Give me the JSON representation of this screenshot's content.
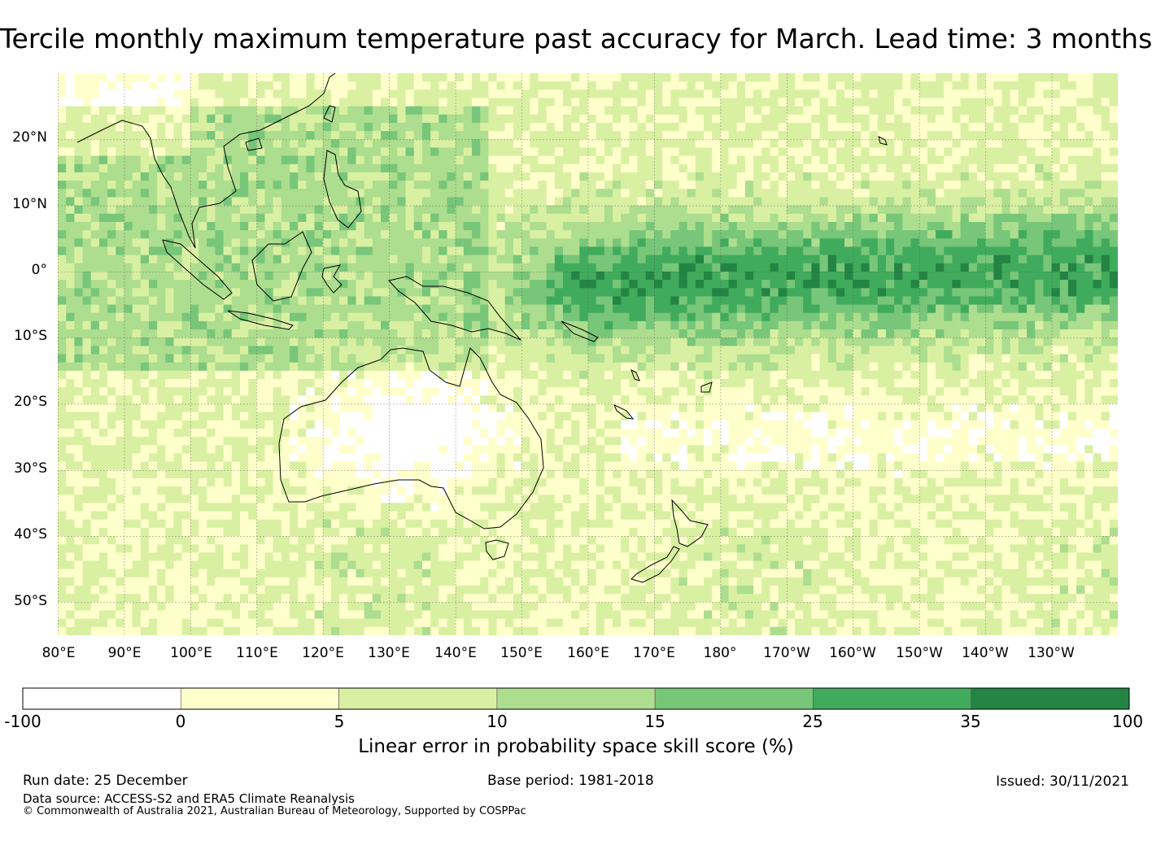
{
  "title": "Tercile monthly maximum temperature past accuracy for March. Lead time: 3 months",
  "map": {
    "lat_labels": [
      "20°N",
      "10°N",
      "0°",
      "10°S",
      "20°S",
      "30°S",
      "40°S",
      "50°S"
    ],
    "lon_labels": [
      "80°E",
      "90°E",
      "100°E",
      "110°E",
      "120°E",
      "130°E",
      "140°E",
      "150°E",
      "160°E",
      "170°E",
      "180°",
      "170°W",
      "160°W",
      "150°W",
      "140°W",
      "130°W"
    ],
    "lat_range": [
      -55,
      30
    ],
    "lon_range": [
      80,
      240
    ]
  },
  "colorbar": {
    "title": "Linear error in probability space skill score (%)",
    "bins": [
      {
        "from": -100,
        "to": 0,
        "color": "#ffffff"
      },
      {
        "from": 0,
        "to": 5,
        "color": "#ffffcc"
      },
      {
        "from": 5,
        "to": 10,
        "color": "#d9f0a3"
      },
      {
        "from": 10,
        "to": 15,
        "color": "#addd8e"
      },
      {
        "from": 15,
        "to": 25,
        "color": "#78c679"
      },
      {
        "from": 25,
        "to": 35,
        "color": "#41ab5d"
      },
      {
        "from": 35,
        "to": 100,
        "color": "#238443"
      }
    ],
    "labels": [
      "-100",
      "0",
      "5",
      "10",
      "15",
      "25",
      "35",
      "100"
    ]
  },
  "footer": {
    "run_date": "Run date: 25 December",
    "base_period": "Base period: 1981-2018",
    "issued": "Issued: 30/11/2021",
    "data_source": "Data source: ACCESS-S2 and ERA5 Climate Reanalysis",
    "copyright": "© Commonwealth of Australia 2021, Australian Bureau of Meteorology, Supported by COSPPac"
  }
}
